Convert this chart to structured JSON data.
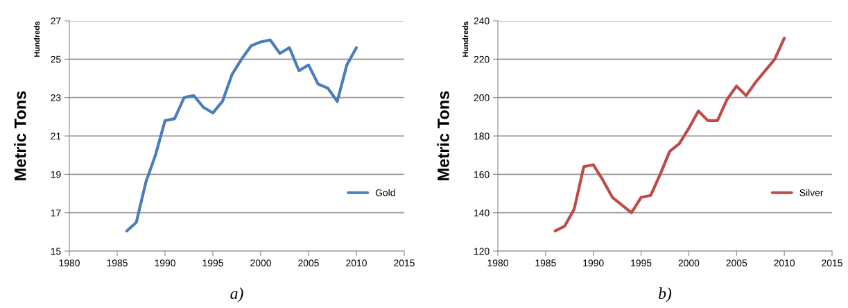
{
  "chart_data": [
    {
      "type": "line",
      "ylabel": "Metric Tons",
      "annotations": [
        "Hundreds",
        "a)"
      ],
      "x": [
        1986,
        1987,
        1988,
        1989,
        1990,
        1991,
        1992,
        1993,
        1994,
        1995,
        1996,
        1997,
        1998,
        1999,
        2000,
        2001,
        2002,
        2003,
        2004,
        2005,
        2006,
        2007,
        2008,
        2009,
        2010
      ],
      "series": [
        {
          "name": "Gold",
          "color": "#4a7ebb",
          "values": [
            16.05,
            16.5,
            18.6,
            20.0,
            21.8,
            21.9,
            23.0,
            23.1,
            22.5,
            22.2,
            22.8,
            24.2,
            25.0,
            25.7,
            25.9,
            26.0,
            25.3,
            25.6,
            24.4,
            24.7,
            23.7,
            23.5,
            22.8,
            24.7,
            25.6
          ]
        }
      ],
      "xlim": [
        1980,
        2015
      ],
      "xticks": [
        1980,
        1985,
        1990,
        1995,
        2000,
        2005,
        2010,
        2015
      ],
      "ylim": [
        15,
        27
      ],
      "yticks": [
        15,
        17,
        19,
        21,
        23,
        25,
        27
      ],
      "grid": "y",
      "legend": "right",
      "marker": "none",
      "line_style": "solid"
    },
    {
      "type": "line",
      "ylabel": "Metric Tons",
      "annotations": [
        "Hundreds",
        "b)"
      ],
      "x": [
        1986,
        1987,
        1988,
        1989,
        1990,
        1991,
        1992,
        1993,
        1994,
        1995,
        1996,
        1997,
        1998,
        1999,
        2000,
        2001,
        2002,
        2003,
        2004,
        2005,
        2006,
        2007,
        2008,
        2009,
        2010
      ],
      "series": [
        {
          "name": "Silver",
          "color": "#be4b48",
          "values": [
            130.5,
            133,
            142,
            164,
            165,
            157,
            148,
            144,
            140,
            148,
            149,
            160,
            172,
            176,
            184,
            193,
            188,
            188,
            199,
            206,
            201,
            208,
            214,
            220,
            231
          ]
        }
      ],
      "xlim": [
        1980,
        2015
      ],
      "xticks": [
        1980,
        1985,
        1990,
        1995,
        2000,
        2005,
        2010,
        2015
      ],
      "ylim": [
        120,
        240
      ],
      "yticks": [
        120,
        140,
        160,
        180,
        200,
        220,
        240
      ],
      "grid": "y",
      "legend": "right",
      "marker": "none",
      "line_style": "solid"
    }
  ]
}
